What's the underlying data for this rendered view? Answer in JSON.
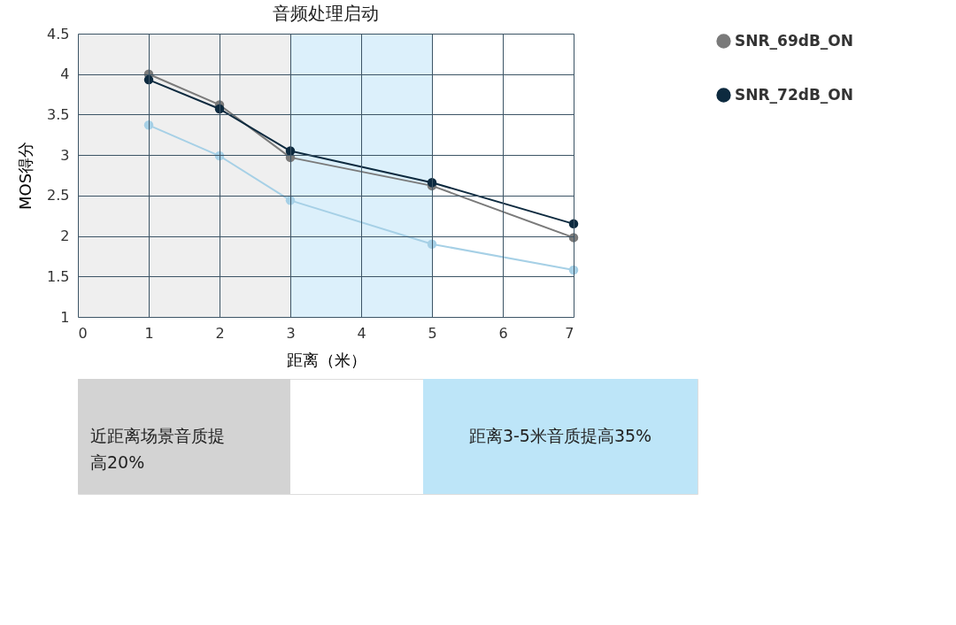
{
  "chart_data": {
    "type": "line",
    "title": "音频处理启动",
    "xlabel": "距离（米）",
    "ylabel": "MOS得分",
    "x": [
      1,
      2,
      3,
      5,
      7
    ],
    "series": [
      {
        "name": "SNR_69dB_ON",
        "color": "#7a7a7a",
        "values": [
          4.0,
          3.62,
          2.97,
          2.62,
          1.98
        ]
      },
      {
        "name": "SNR_72dB_ON",
        "color": "#0d2a3f",
        "values": [
          3.93,
          3.57,
          3.05,
          2.66,
          2.15
        ]
      },
      {
        "color": "#a6d0e6",
        "values": [
          3.37,
          2.99,
          2.44,
          1.9,
          1.58
        ]
      }
    ],
    "xlim": [
      0,
      7
    ],
    "xticks": [
      0,
      1,
      2,
      3,
      4,
      5,
      6,
      7
    ],
    "ylim": [
      1,
      4.5
    ],
    "yticks": [
      1,
      1.5,
      2,
      2.5,
      3,
      3.5,
      4,
      4.5
    ],
    "bands": [
      {
        "axis": "x",
        "from": 0,
        "to": 3,
        "color": "#efefef"
      },
      {
        "axis": "x",
        "from": 3,
        "to": 5,
        "color": "#dcf0fb"
      }
    ],
    "annotations": [
      "近距离场景音质提高20%",
      "距离3-5米音质提高35%"
    ],
    "grid": true,
    "legend": "right",
    "marker": "circle",
    "line_style": "solid"
  }
}
